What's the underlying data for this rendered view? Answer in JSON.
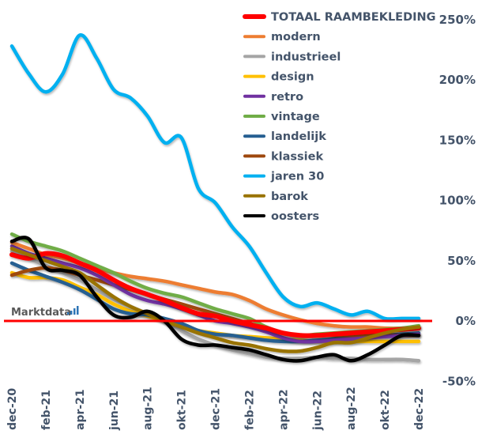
{
  "chart_data": {
    "type": "line",
    "title": "",
    "xlabel": "",
    "ylabel": "",
    "ylim": [
      -50,
      250
    ],
    "y_ticks": [
      "250%",
      "200%",
      "150%",
      "100%",
      "50%",
      "0%",
      "-50%"
    ],
    "y_tick_values": [
      250,
      200,
      150,
      100,
      50,
      0,
      -50
    ],
    "y_axis_side": "right",
    "x": [
      "dec-20",
      "jan-21",
      "feb-21",
      "mrt-21",
      "apr-21",
      "mei-21",
      "jun-21",
      "jul-21",
      "aug-21",
      "sep-21",
      "okt-21",
      "nov-21",
      "dec-21",
      "jan-22",
      "feb-22",
      "mrt-22",
      "apr-22",
      "mei-22",
      "jun-22",
      "jul-22",
      "aug-22",
      "sep-22",
      "okt-22",
      "nov-22",
      "dec-22"
    ],
    "x_tick_labels": [
      "dec-20",
      "feb-21",
      "apr-21",
      "jun-21",
      "aug-21",
      "okt-21",
      "dec-21",
      "feb-22",
      "apr-22",
      "jun-22",
      "aug-22",
      "okt-22",
      "dec-22"
    ],
    "grid": false,
    "reference_line": {
      "value": 0,
      "color": "#ff0000"
    },
    "legend_position": "top-right",
    "watermark": "Marktdata",
    "series": [
      {
        "name": "TOTAAL RAAMBEKLEDING",
        "color": "#ff0000",
        "values": [
          55,
          52,
          56,
          54,
          48,
          42,
          34,
          27,
          22,
          17,
          11,
          6,
          4,
          0,
          -3,
          -6,
          -10,
          -12,
          -12,
          -11,
          -10,
          -9,
          -8,
          -7,
          -6
        ]
      },
      {
        "name": "modern",
        "color": "#ed7d31",
        "values": [
          65,
          60,
          55,
          52,
          48,
          44,
          40,
          37,
          35,
          33,
          30,
          27,
          24,
          22,
          17,
          10,
          5,
          1,
          -2,
          -4,
          -5,
          -5,
          -6,
          -6,
          -5
        ]
      },
      {
        "name": "industrieel",
        "color": "#a5a5a5",
        "values": [
          58,
          52,
          46,
          40,
          34,
          26,
          18,
          12,
          6,
          0,
          -8,
          -15,
          -20,
          -24,
          -27,
          -30,
          -31,
          -31,
          -30,
          -31,
          -31,
          -32,
          -32,
          -32,
          -33
        ]
      },
      {
        "name": "design",
        "color": "#ffc000",
        "values": [
          40,
          36,
          36,
          34,
          28,
          22,
          14,
          8,
          4,
          0,
          -4,
          -8,
          -10,
          -12,
          -13,
          -14,
          -15,
          -16,
          -17,
          -17,
          -17,
          -17,
          -17,
          -17,
          -17
        ]
      },
      {
        "name": "retro",
        "color": "#7030a0",
        "values": [
          62,
          56,
          52,
          48,
          44,
          38,
          30,
          22,
          17,
          14,
          10,
          5,
          0,
          -2,
          -5,
          -9,
          -14,
          -17,
          -17,
          -16,
          -15,
          -14,
          -13,
          -12,
          -11
        ]
      },
      {
        "name": "vintage",
        "color": "#70ad47",
        "values": [
          72,
          66,
          62,
          58,
          52,
          46,
          40,
          33,
          27,
          23,
          20,
          15,
          10,
          6,
          2,
          -5,
          -10,
          -12,
          -11,
          -10,
          -9,
          -8,
          -7,
          -6,
          -4
        ]
      },
      {
        "name": "landelijk",
        "color": "#255e91",
        "values": [
          48,
          42,
          37,
          32,
          26,
          18,
          10,
          6,
          5,
          2,
          -2,
          -8,
          -11,
          -12,
          -14,
          -16,
          -17,
          -17,
          -16,
          -15,
          -14,
          -13,
          -12,
          -11,
          -10
        ]
      },
      {
        "name": "klassiek",
        "color": "#9e480e",
        "values": [
          38,
          42,
          44,
          42,
          38,
          34,
          30,
          26,
          22,
          18,
          14,
          10,
          6,
          2,
          -2,
          -6,
          -10,
          -12,
          -12,
          -12,
          -12,
          -12,
          -12,
          -12,
          -12
        ]
      },
      {
        "name": "jaren 30",
        "color": "#00b0f0",
        "values": [
          228,
          205,
          190,
          205,
          237,
          218,
          192,
          185,
          170,
          148,
          152,
          110,
          98,
          78,
          62,
          40,
          20,
          12,
          15,
          10,
          5,
          8,
          2,
          2,
          2
        ]
      },
      {
        "name": "barok",
        "color": "#997300",
        "values": [
          60,
          55,
          50,
          45,
          40,
          30,
          20,
          12,
          6,
          0,
          -5,
          -10,
          -14,
          -18,
          -20,
          -23,
          -25,
          -25,
          -22,
          -18,
          -18,
          -14,
          -10,
          -7,
          -5
        ]
      },
      {
        "name": "oosters",
        "color": "#000000",
        "values": [
          66,
          68,
          44,
          42,
          38,
          20,
          5,
          3,
          8,
          0,
          -15,
          -20,
          -20,
          -22,
          -24,
          -28,
          -32,
          -33,
          -30,
          -28,
          -33,
          -28,
          -20,
          -12,
          -12
        ]
      }
    ]
  }
}
